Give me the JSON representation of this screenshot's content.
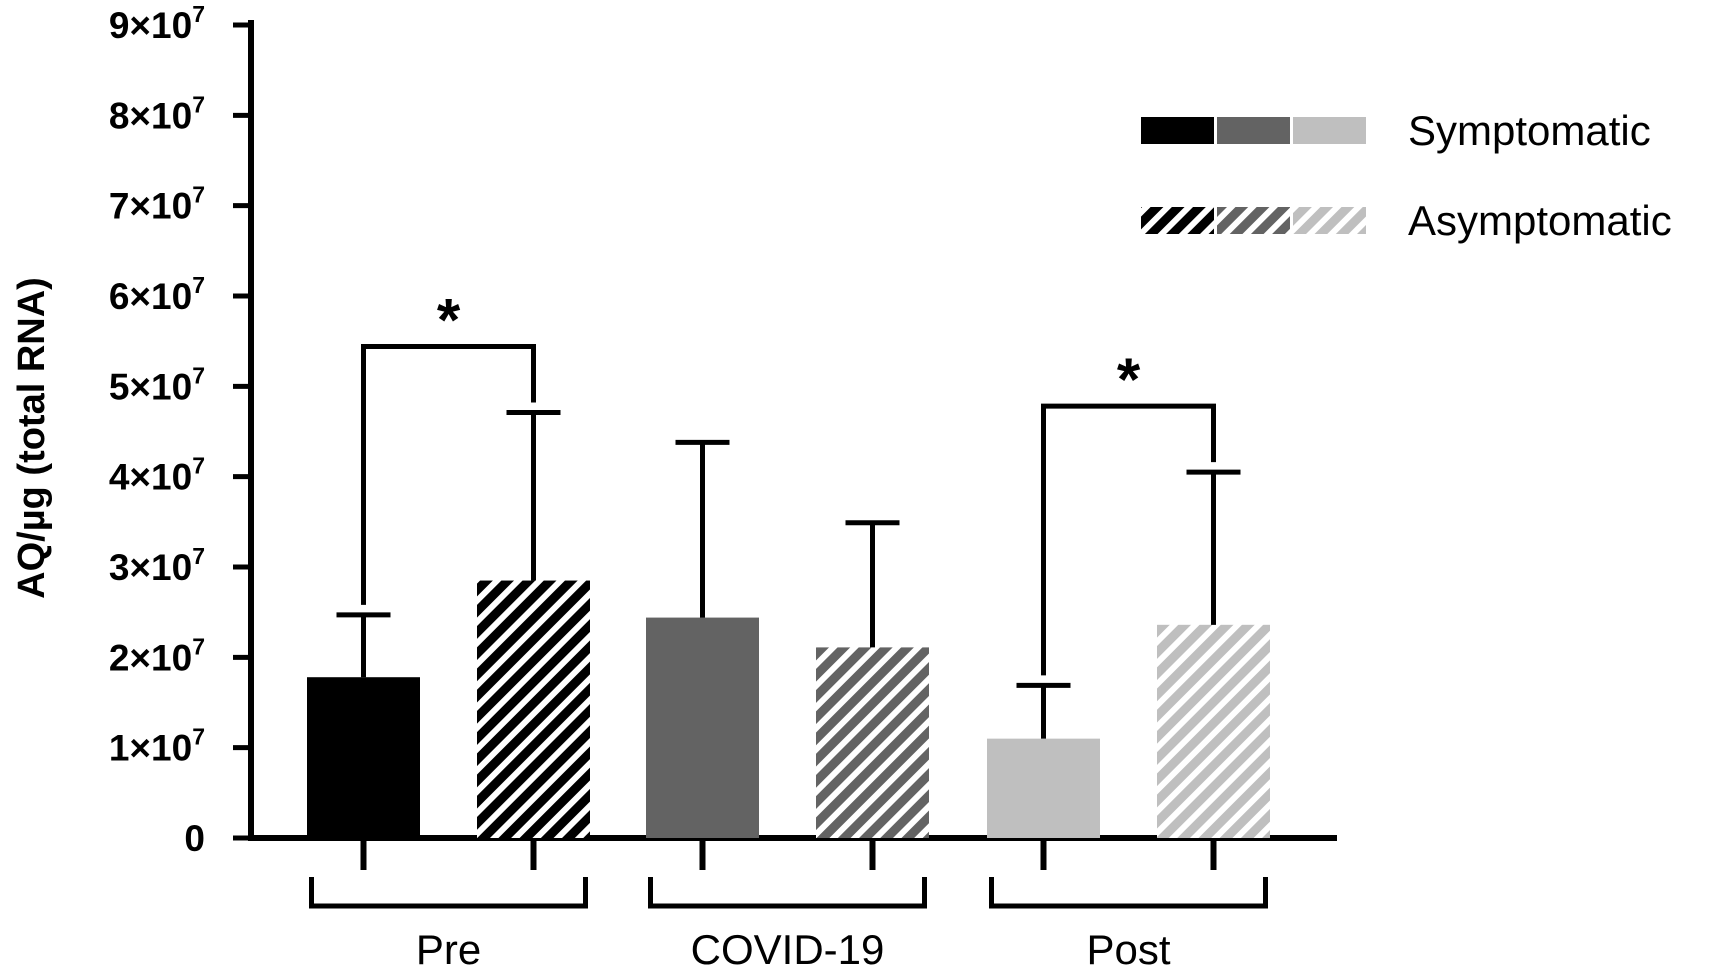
{
  "chart_data": {
    "type": "bar",
    "title": "",
    "xlabel": "",
    "ylabel": "AQ/µg (total RNA)",
    "ylim": [
      0,
      90000000
    ],
    "y_ticks": [
      {
        "value": 0,
        "mantissa": "0",
        "exponent": ""
      },
      {
        "value": 10000000,
        "mantissa": "1×10",
        "exponent": "7"
      },
      {
        "value": 20000000,
        "mantissa": "2×10",
        "exponent": "7"
      },
      {
        "value": 30000000,
        "mantissa": "3×10",
        "exponent": "7"
      },
      {
        "value": 40000000,
        "mantissa": "4×10",
        "exponent": "7"
      },
      {
        "value": 50000000,
        "mantissa": "5×10",
        "exponent": "7"
      },
      {
        "value": 60000000,
        "mantissa": "6×10",
        "exponent": "7"
      },
      {
        "value": 70000000,
        "mantissa": "7×10",
        "exponent": "7"
      },
      {
        "value": 80000000,
        "mantissa": "8×10",
        "exponent": "7"
      },
      {
        "value": 90000000,
        "mantissa": "9×10",
        "exponent": "7"
      }
    ],
    "groups": [
      "Pre",
      "COVID-19",
      "Post"
    ],
    "group_colors": [
      "#000000",
      "#636363",
      "#bfbfbf"
    ],
    "series": [
      {
        "name": "Symptomatic",
        "pattern": "solid",
        "values": [
          17800000,
          24400000,
          11000000
        ],
        "errors": [
          6900000,
          19400000,
          5900000
        ]
      },
      {
        "name": "Asymptomatic",
        "pattern": "hatched",
        "values": [
          28500000,
          21100000,
          23600000
        ],
        "errors": [
          18600000,
          13800000,
          16900000
        ]
      }
    ],
    "significance": [
      {
        "group": 0,
        "label": "*"
      },
      {
        "group": 2,
        "label": "*"
      }
    ],
    "legend": {
      "position": "top-right",
      "entries": [
        {
          "label": "Symptomatic",
          "pattern": "solid"
        },
        {
          "label": "Asymptomatic",
          "pattern": "hatched"
        }
      ]
    }
  }
}
